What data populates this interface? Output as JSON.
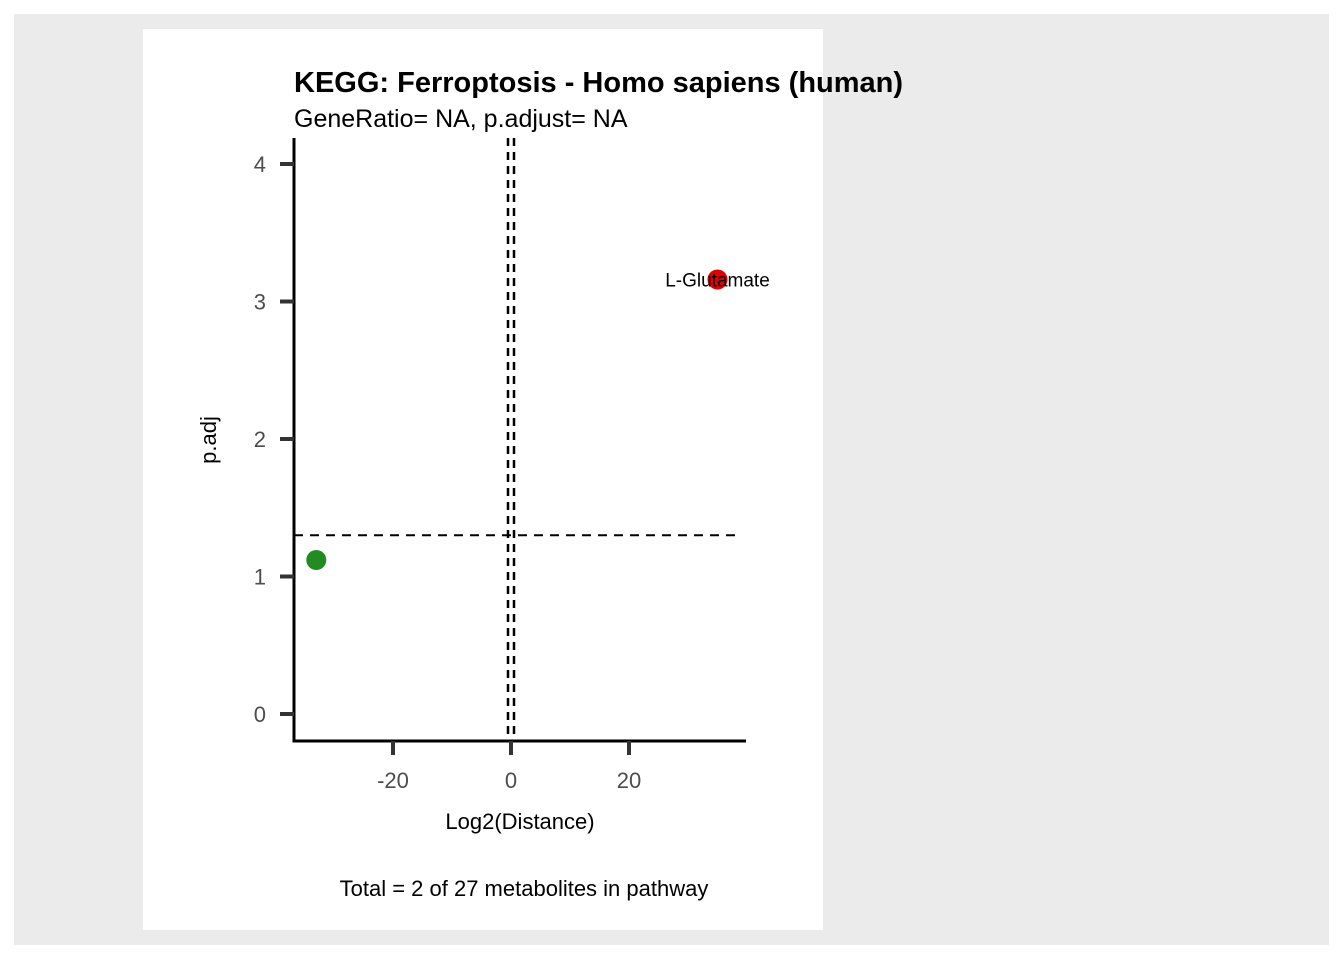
{
  "chart_data": {
    "type": "scatter",
    "title": "KEGG: Ferroptosis - Homo sapiens (human)",
    "subtitle": "GeneRatio= NA, p.adjust= NA",
    "xlabel": "Log2(Distance)",
    "ylabel": "p.adj",
    "caption": "Total = 2 of 27 metabolites in pathway",
    "xlim": [
      -37,
      40
    ],
    "ylim": [
      -0.2,
      4.2
    ],
    "x_ticks": [
      -20,
      0,
      20
    ],
    "x_tick_labels": [
      "-20",
      "0",
      "20"
    ],
    "y_ticks": [
      0,
      1,
      2,
      3,
      4
    ],
    "y_tick_labels": [
      "0",
      "1",
      "2",
      "3",
      "4"
    ],
    "hline": 1.3,
    "vline": 0,
    "grid": false,
    "points": [
      {
        "x": -33,
        "y": 1.12,
        "color": "#228b22",
        "label": ""
      },
      {
        "x": 35,
        "y": 3.16,
        "color": "#e00000",
        "label": "L-Glutamate"
      }
    ]
  }
}
